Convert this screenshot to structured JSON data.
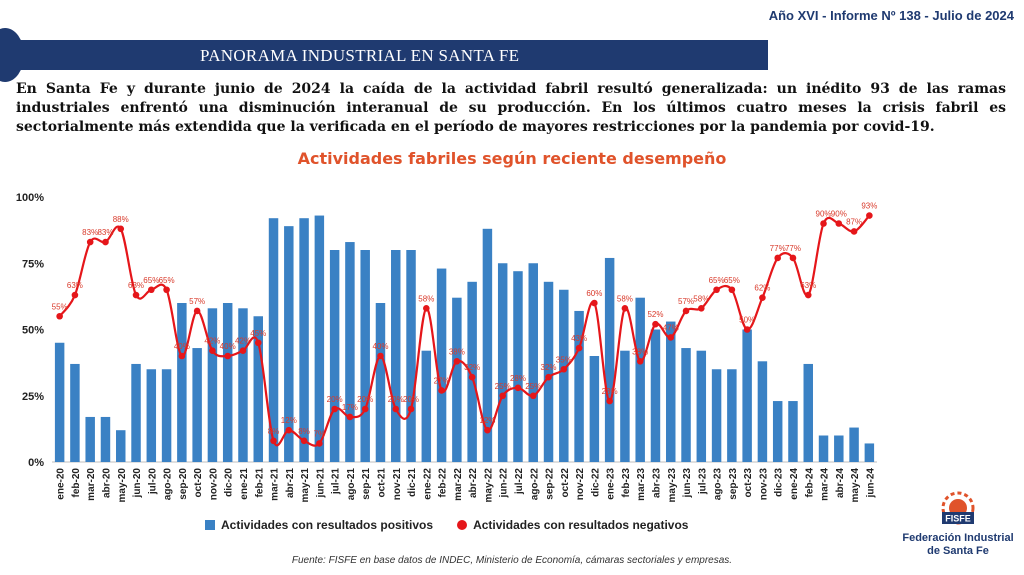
{
  "header": {
    "report_id": "Año XVI - Informe Nº 138 - Julio de 2024",
    "banner_title": "PANORAMA INDUSTRIAL EN SANTA FE"
  },
  "intro_text": "En Santa Fe y durante junio de 2024 la caída de la actividad fabril resultó generalizada: un inédito 93 de las ramas industriales enfrentó una disminución interanual de su producción. En los últimos cuatro meses la crisis fabril es sectorialmente más extendida que la verificada en el período de mayores restricciones por la pandemia por covid-19.",
  "chart_data": {
    "type": "bar",
    "title": "Actividades fabriles según reciente desempeño",
    "categories": [
      "ene-20",
      "feb-20",
      "mar-20",
      "abr-20",
      "may-20",
      "jun-20",
      "jul-20",
      "ago-20",
      "sep-20",
      "oct-20",
      "nov-20",
      "dic-20",
      "ene-21",
      "feb-21",
      "mar-21",
      "abr-21",
      "may-21",
      "jun-21",
      "jul-21",
      "ago-21",
      "sep-21",
      "oct-21",
      "nov-21",
      "dic-21",
      "ene-22",
      "feb-22",
      "mar-22",
      "abr-22",
      "may-22",
      "jun-22",
      "jul-22",
      "ago-22",
      "sep-22",
      "oct-22",
      "nov-22",
      "dic-22",
      "ene-23",
      "feb-23",
      "mar-23",
      "abr-23",
      "may-23",
      "jun-23",
      "jul-23",
      "ago-23",
      "sep-23",
      "oct-23",
      "nov-23",
      "dic-23",
      "ene-24",
      "feb-24",
      "mar-24",
      "abr-24",
      "may-24",
      "jun-24"
    ],
    "yticks": [
      "0%",
      "25%",
      "50%",
      "75%",
      "100%"
    ],
    "ylim": [
      0,
      100
    ],
    "series": [
      {
        "name": "Actividades con resultados positivos",
        "type": "bar",
        "values": [
          45,
          37,
          17,
          17,
          12,
          37,
          35,
          35,
          60,
          43,
          58,
          60,
          58,
          55,
          92,
          89,
          92,
          93,
          80,
          83,
          80,
          60,
          80,
          80,
          42,
          73,
          62,
          68,
          88,
          75,
          72,
          75,
          68,
          65,
          57,
          40,
          77,
          42,
          62,
          50,
          53,
          43,
          42,
          35,
          35,
          50,
          38,
          23,
          23,
          37,
          10,
          10,
          13,
          7
        ]
      },
      {
        "name": "Actividades con resultados negativos",
        "type": "line",
        "values": [
          55,
          63,
          83,
          83,
          88,
          63,
          65,
          65,
          40,
          57,
          42,
          40,
          42,
          45,
          8,
          12,
          8,
          7,
          20,
          17,
          20,
          40,
          20,
          20,
          58,
          27,
          38,
          32,
          12,
          25,
          28,
          25,
          32,
          35,
          43,
          60,
          23,
          58,
          38,
          52,
          47,
          57,
          58,
          65,
          65,
          50,
          62,
          77,
          77,
          63,
          90,
          90,
          87,
          93
        ],
        "labels": [
          "55%",
          "63%",
          "83%",
          "83%",
          "88%",
          "63%",
          "65%",
          "65%",
          "40%",
          "57%",
          "42%",
          "40%",
          "42%",
          "45%",
          "8%",
          "12%",
          "8%",
          "7%",
          "20%",
          "17%",
          "20%",
          "40%",
          "20%",
          "20%",
          "58%",
          "27%",
          "38%",
          "32%",
          "12%",
          "25%",
          "28%",
          "25%",
          "32%",
          "35%",
          "43%",
          "60%",
          "23%",
          "58%",
          "38%",
          "52%",
          "47%",
          "57%",
          "58%",
          "65%",
          "65%",
          "50%",
          "62%",
          "77%",
          "77%",
          "63%",
          "90%",
          "90%",
          "87%",
          "93%"
        ]
      }
    ],
    "legend_position": "bottom",
    "grid": false,
    "colors": {
      "bars": "#3a81c4",
      "line": "#e5161a",
      "labels": "#d93a2b"
    }
  },
  "source_text": "Fuente: FISFE en base datos de INDEC, Ministerio de Economía, cámaras sectoriales y empresas.",
  "logo": {
    "acronym": "FISFE",
    "name_line1": "Federación Industrial",
    "name_line2": "de Santa Fe",
    "icon": "fisfe-logo-icon"
  },
  "brand_colors": {
    "navy": "#1f3a70",
    "orange": "#e0532b"
  }
}
